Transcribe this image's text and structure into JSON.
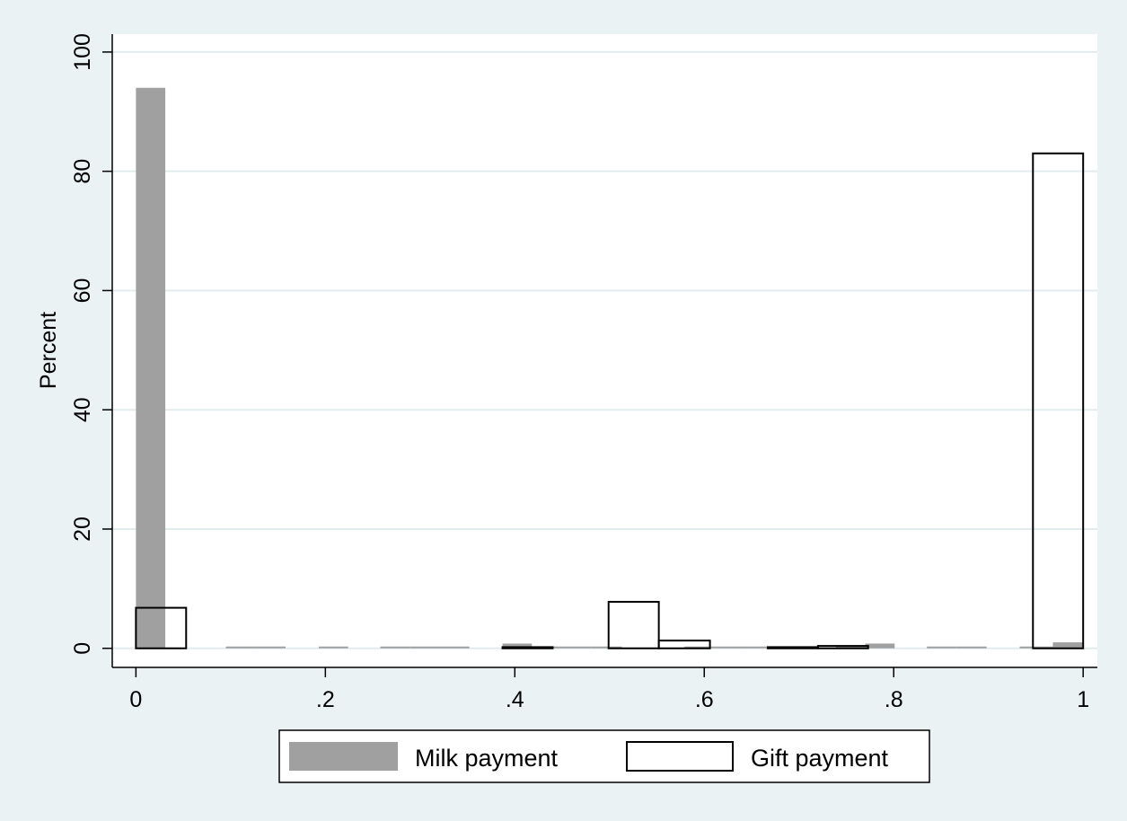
{
  "chart_data": {
    "type": "bar",
    "title": "",
    "xlabel": "",
    "ylabel": "Percent",
    "xlim": [
      -0.025,
      1.015
    ],
    "ylim": [
      -3.2,
      103
    ],
    "xticks": [
      0,
      0.2,
      0.4,
      0.6,
      0.8,
      1
    ],
    "xtick_labels": [
      "0",
      ".2",
      ".4",
      ".6",
      ".8",
      "1"
    ],
    "yticks": [
      0,
      20,
      40,
      60,
      80,
      100
    ],
    "ytick_labels": [
      "0",
      "20",
      "40",
      "60",
      "80",
      "100"
    ],
    "grid": "horizontal",
    "legend": "bottom",
    "series": [
      {
        "name": "Milk payment",
        "fill": "#a0a0a0",
        "stroke": "none",
        "bars": [
          {
            "x0": 0.0,
            "x1": 0.031,
            "value": 94.0
          },
          {
            "x0": 0.095,
            "x1": 0.127,
            "value": 0.3
          },
          {
            "x0": 0.127,
            "x1": 0.158,
            "value": 0.3
          },
          {
            "x0": 0.193,
            "x1": 0.224,
            "value": 0.3
          },
          {
            "x0": 0.258,
            "x1": 0.289,
            "value": 0.3
          },
          {
            "x0": 0.289,
            "x1": 0.321,
            "value": 0.3
          },
          {
            "x0": 0.321,
            "x1": 0.352,
            "value": 0.3
          },
          {
            "x0": 0.387,
            "x1": 0.418,
            "value": 0.8
          },
          {
            "x0": 0.418,
            "x1": 0.45,
            "value": 0.3
          },
          {
            "x0": 0.45,
            "x1": 0.481,
            "value": 0.3
          },
          {
            "x0": 0.481,
            "x1": 0.513,
            "value": 0.3
          },
          {
            "x0": 0.579,
            "x1": 0.61,
            "value": 0.3
          },
          {
            "x0": 0.61,
            "x1": 0.642,
            "value": 0.3
          },
          {
            "x0": 0.642,
            "x1": 0.673,
            "value": 0.3
          },
          {
            "x0": 0.739,
            "x1": 0.77,
            "value": 0.5
          },
          {
            "x0": 0.77,
            "x1": 0.801,
            "value": 0.8
          },
          {
            "x0": 0.835,
            "x1": 0.866,
            "value": 0.3
          },
          {
            "x0": 0.866,
            "x1": 0.898,
            "value": 0.3
          },
          {
            "x0": 0.933,
            "x1": 0.968,
            "value": 0.3
          },
          {
            "x0": 0.968,
            "x1": 1.0,
            "value": 1.0
          }
        ]
      },
      {
        "name": "Gift payment",
        "fill": "none",
        "stroke": "#000000",
        "bars": [
          {
            "x0": 0.0,
            "x1": 0.053,
            "value": 6.8
          },
          {
            "x0": 0.387,
            "x1": 0.44,
            "value": 0.2
          },
          {
            "x0": 0.499,
            "x1": 0.552,
            "value": 7.8
          },
          {
            "x0": 0.552,
            "x1": 0.606,
            "value": 1.3
          },
          {
            "x0": 0.667,
            "x1": 0.72,
            "value": 0.2
          },
          {
            "x0": 0.72,
            "x1": 0.773,
            "value": 0.4
          },
          {
            "x0": 0.947,
            "x1": 1.0,
            "value": 83.0
          }
        ]
      }
    ]
  },
  "legend": {
    "items": [
      {
        "label": "Milk payment",
        "fill": "#a0a0a0",
        "stroke": "none"
      },
      {
        "label": "Gift payment",
        "fill": "#ffffff",
        "stroke": "#000000"
      }
    ]
  },
  "colors": {
    "background": "#eaf2f3",
    "plot_background": "#ffffff",
    "grid": "#e2ecee"
  }
}
